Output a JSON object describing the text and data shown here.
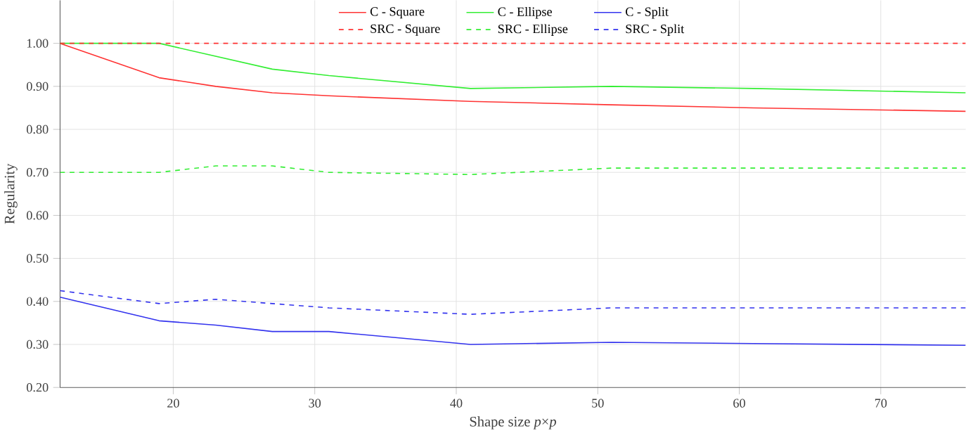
{
  "chart_data": {
    "type": "line",
    "xlabel": "Shape size *p*×*p*",
    "ylabel": "Regularity",
    "xlim": [
      12,
      76
    ],
    "xticks": [
      20,
      30,
      40,
      50,
      60,
      70
    ],
    "ylim": [
      0.2,
      1.1
    ],
    "yticks": [
      {
        "value": 0.2,
        "label": "0.20"
      },
      {
        "value": 0.3,
        "label": "0.30"
      },
      {
        "value": 0.4,
        "label": "0.40"
      },
      {
        "value": 0.5,
        "label": "0.50"
      },
      {
        "value": 0.6,
        "label": "0.60"
      },
      {
        "value": 0.7,
        "label": "0.70"
      },
      {
        "value": 0.8,
        "label": "0.80"
      },
      {
        "value": 0.9,
        "label": "0.90"
      },
      {
        "value": 1.0,
        "label": "1.00"
      }
    ],
    "x": [
      12,
      19,
      23,
      27,
      31,
      41,
      51,
      61,
      76
    ],
    "grid": true,
    "legend": "top",
    "marker": "none",
    "series": [
      {
        "name": "C - Square",
        "color": "#ff3333",
        "line_style": "solid",
        "values": [
          1.0,
          0.92,
          0.9,
          0.885,
          0.878,
          0.865,
          0.857,
          0.85,
          0.842
        ]
      },
      {
        "name": "C - Ellipse",
        "color": "#33ee33",
        "line_style": "solid",
        "values": [
          1.0,
          1.0,
          0.97,
          0.94,
          0.925,
          0.895,
          0.9,
          0.895,
          0.885
        ]
      },
      {
        "name": "C - Split",
        "color": "#3333ee",
        "line_style": "solid",
        "values": [
          0.41,
          0.355,
          0.345,
          0.33,
          0.33,
          0.3,
          0.305,
          0.302,
          0.298
        ]
      },
      {
        "name": "SRC - Square",
        "color": "#ff3333",
        "line_style": "dashed",
        "values": [
          1.0,
          1.0,
          1.0,
          1.0,
          1.0,
          1.0,
          1.0,
          1.0,
          1.0
        ]
      },
      {
        "name": "SRC - Ellipse",
        "color": "#33ee33",
        "line_style": "dashed",
        "values": [
          0.7,
          0.7,
          0.715,
          0.715,
          0.7,
          0.695,
          0.71,
          0.71,
          0.71
        ]
      },
      {
        "name": "SRC - Split",
        "color": "#3333ee",
        "line_style": "dashed",
        "values": [
          0.425,
          0.395,
          0.405,
          0.395,
          0.385,
          0.37,
          0.385,
          0.385,
          0.385
        ]
      }
    ]
  }
}
